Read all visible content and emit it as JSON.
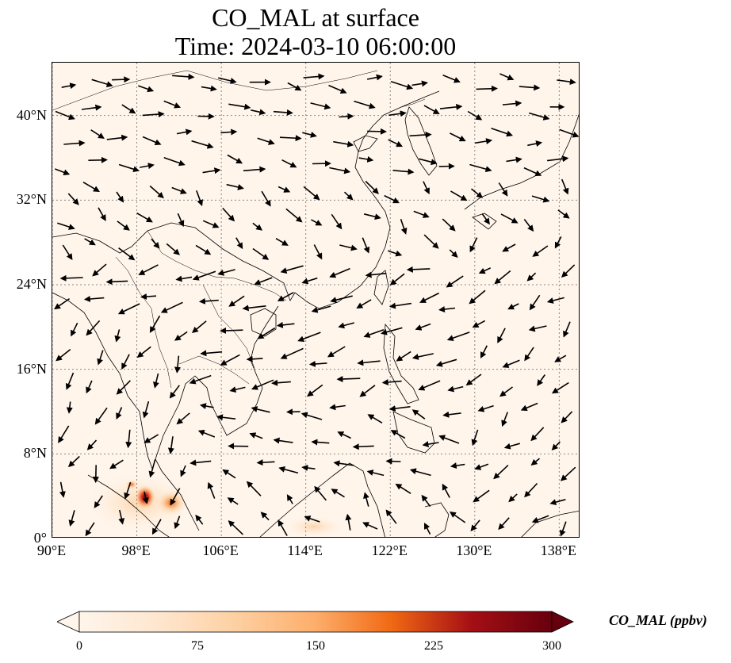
{
  "title_line1": "CO_MAL at surface",
  "title_line2": "Time: 2024-03-10 06:00:00",
  "map": {
    "lon_range": [
      90,
      140
    ],
    "lat_range": [
      0,
      45
    ],
    "x_ticks": [
      "90°E",
      "98°E",
      "106°E",
      "114°E",
      "122°E",
      "130°E",
      "138°E"
    ],
    "y_ticks": [
      "40°N",
      "32°N",
      "24°N",
      "16°N",
      "8°N",
      "0°"
    ],
    "background_color": "#fff5eb",
    "grid": true
  },
  "colorbar": {
    "label": "CO_MAL (ppbv)",
    "ticks": [
      "0",
      "75",
      "150",
      "225",
      "300"
    ],
    "min": 0,
    "max": 300,
    "extend": "both",
    "colormap": [
      "#fff5eb",
      "#fdd0a2",
      "#fdae6b",
      "#f16913",
      "#d7301f",
      "#a50f15",
      "#67000d"
    ]
  },
  "hotspots": [
    {
      "lon": 99,
      "lat": 3.8,
      "value": 280
    },
    {
      "lon": 101.6,
      "lat": 3.1,
      "value": 160
    },
    {
      "lon": 98,
      "lat": 5,
      "value": 60
    }
  ]
}
